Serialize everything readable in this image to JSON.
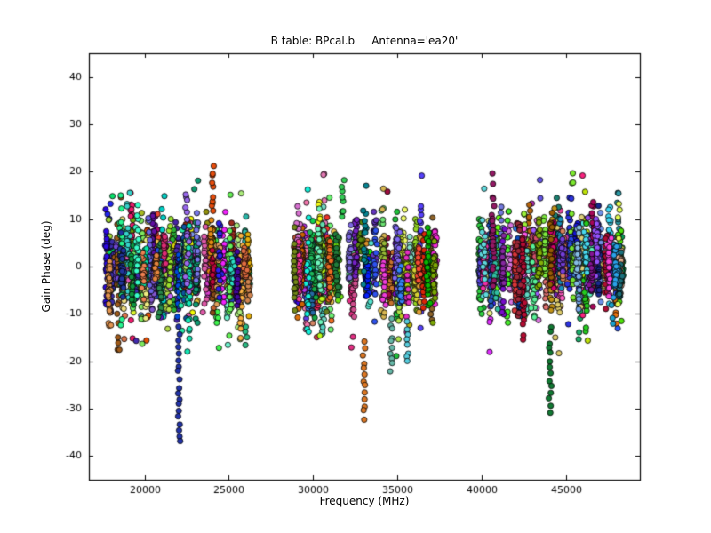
{
  "chart_data": {
    "type": "scatter",
    "title": "B table: BPcal.b     Antenna='ea20'",
    "xlabel": "Frequency (MHz)",
    "ylabel": "Gain Phase (deg)",
    "xlim": [
      16700,
      49400
    ],
    "ylim": [
      -45,
      45
    ],
    "xticks": [
      20000,
      25000,
      30000,
      35000,
      40000,
      45000
    ],
    "yticks": [
      -40,
      -30,
      -20,
      -10,
      0,
      10,
      20,
      30,
      40
    ],
    "grid": false,
    "background": "#ffffff",
    "axes_edge_color": "#000000",
    "marker": {
      "radius_px": 3.1,
      "edge_color": "#000000",
      "edge_width": 0.8
    },
    "clusters": [
      {
        "x_min": 17700,
        "x_max": 26450,
        "columns": 96
      },
      {
        "x_min": 28850,
        "x_max": 37250,
        "columns": 88
      },
      {
        "x_min": 39900,
        "x_max": 48300,
        "columns": 92
      }
    ],
    "generation": {
      "seed": 1337,
      "column_y_center_sigma": 2.2,
      "column_y_sigma_range": [
        1.5,
        6.5
      ],
      "points_per_column_range": [
        16,
        36
      ],
      "x_jitter_mhz": 55,
      "y_clip": [
        -19,
        20
      ]
    },
    "spikes": [
      {
        "x": 22050,
        "y_from": -13,
        "y_to": -37,
        "n": 19,
        "color": "#2233aa"
      },
      {
        "x": 33050,
        "y_from": -16,
        "y_to": -32,
        "n": 13,
        "color": "#dd7722"
      },
      {
        "x": 34650,
        "y_from": -11,
        "y_to": -22,
        "n": 10,
        "color": "#66b8a8"
      },
      {
        "x": 35600,
        "y_from": -12,
        "y_to": -20,
        "n": 8,
        "color": "#55ccdd"
      },
      {
        "x": 44100,
        "y_from": -13,
        "y_to": -31,
        "n": 14,
        "color": "#117a33"
      },
      {
        "x": 24050,
        "y_from": 12,
        "y_to": 21,
        "n": 9,
        "color": "#e84d0c"
      },
      {
        "x": 31750,
        "y_from": 10,
        "y_to": 18,
        "n": 8,
        "color": "#33cc55"
      }
    ]
  }
}
